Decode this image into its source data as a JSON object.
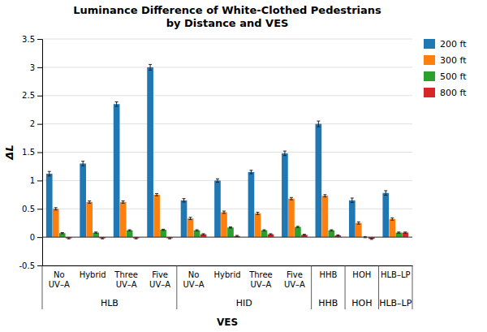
{
  "chart_data": {
    "type": "bar",
    "title": "Luminance Difference of White-Clothed Pedestrians\nby Distance and VES",
    "xlabel": "VES",
    "ylabel": "ΔL",
    "categories": [
      "No\nUV–A",
      "Hybrid",
      "Three\nUV–A",
      "Five\nUV–A",
      "No\nUV–A",
      "Hybrid",
      "Three\nUV–A",
      "Five\nUV–A",
      "HHB",
      "HOH",
      "HLB–LP"
    ],
    "category_groups": [
      {
        "label": "HLB",
        "count": 4
      },
      {
        "label": "HID",
        "count": 4
      },
      {
        "label": "HHB",
        "count": 1
      },
      {
        "label": "HOH",
        "count": 1
      },
      {
        "label": "HLB–LP",
        "count": 1
      }
    ],
    "series": [
      {
        "name": "200 ft",
        "values": [
          1.12,
          1.3,
          2.35,
          3.0,
          0.65,
          1.0,
          1.15,
          1.48,
          2.0,
          0.65,
          0.78
        ],
        "errors": [
          0.04,
          0.04,
          0.04,
          0.05,
          0.03,
          0.03,
          0.03,
          0.04,
          0.05,
          0.04,
          0.04
        ]
      },
      {
        "name": "300 ft",
        "values": [
          0.5,
          0.62,
          0.62,
          0.75,
          0.33,
          0.44,
          0.42,
          0.68,
          0.73,
          0.25,
          0.32
        ],
        "errors": [
          0.02,
          0.02,
          0.02,
          0.02,
          0.02,
          0.02,
          0.02,
          0.02,
          0.02,
          0.02,
          0.02
        ]
      },
      {
        "name": "500 ft",
        "values": [
          0.07,
          0.08,
          0.12,
          0.13,
          0.12,
          0.17,
          0.12,
          0.18,
          0.12,
          0.0,
          0.08
        ],
        "errors": [
          0.01,
          0.01,
          0.01,
          0.01,
          0.01,
          0.01,
          0.01,
          0.01,
          0.01,
          0.01,
          0.01
        ]
      },
      {
        "name": "800 ft",
        "values": [
          -0.02,
          -0.02,
          -0.02,
          -0.02,
          0.05,
          0.02,
          0.05,
          0.04,
          0.03,
          -0.03,
          0.08
        ],
        "errors": [
          0.01,
          0.01,
          0.01,
          0.01,
          0.01,
          0.01,
          0.01,
          0.01,
          0.01,
          0.01,
          0.01
        ]
      }
    ],
    "ylim": [
      -0.5,
      3.5
    ],
    "yticks": [
      -0.5,
      0,
      0.5,
      1,
      1.5,
      2,
      2.5,
      3,
      3.5
    ],
    "grid": true,
    "legend": "right"
  }
}
